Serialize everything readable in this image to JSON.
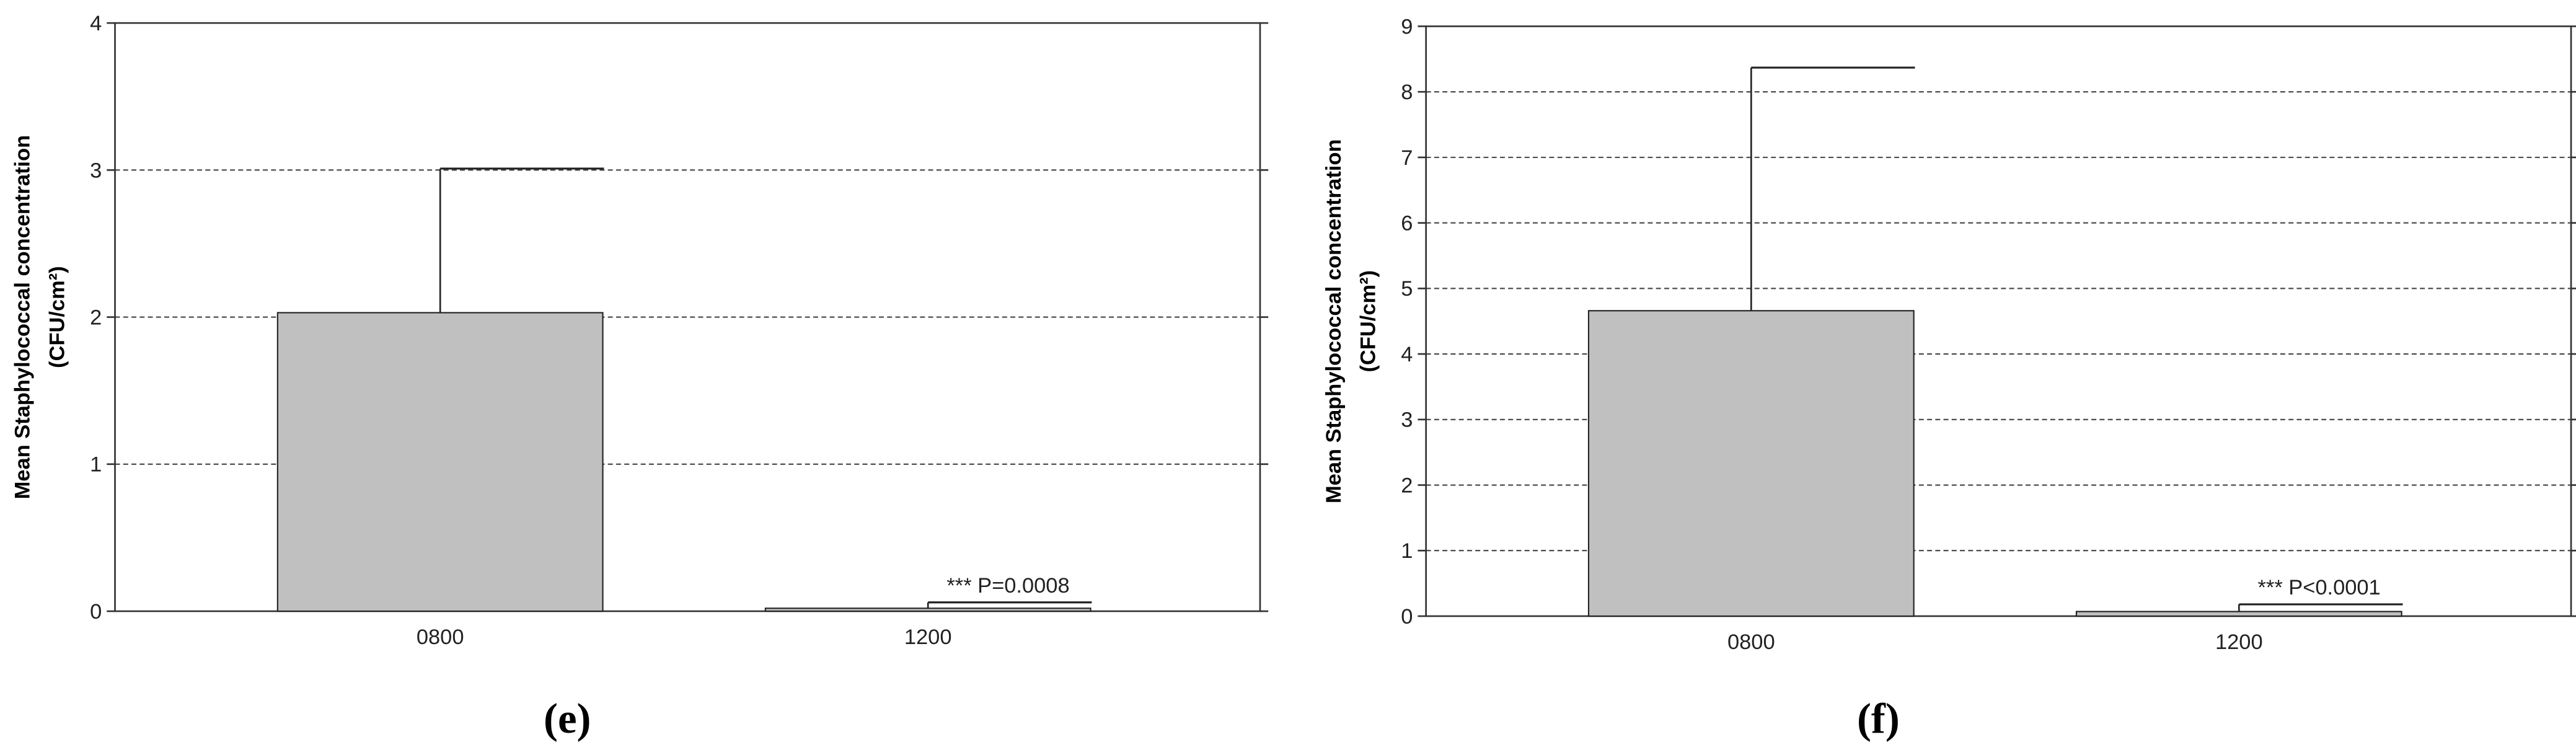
{
  "chart_data": [
    {
      "type": "bar",
      "panel_label": "(e)",
      "y_label": "Mean Staphylococcal concentration",
      "y_label_unit": "(CFU/cm²)",
      "categories": [
        "0800",
        "1200"
      ],
      "values": [
        2.03,
        0.02
      ],
      "errors": [
        0.98,
        0.04
      ],
      "color": "#c0c0c0",
      "annotation": "*** P=0.0008",
      "ylim": [
        0,
        4
      ],
      "yticks": [
        0,
        1,
        2,
        3,
        4
      ],
      "grid": true
    },
    {
      "type": "bar",
      "panel_label": "(f)",
      "y_label": "Mean Staphylococcal concentration",
      "y_label_unit": "(CFU/cm²)",
      "categories": [
        "0800",
        "1200"
      ],
      "values": [
        4.66,
        0.07
      ],
      "errors": [
        3.71,
        0.11
      ],
      "color": "#c0c0c0",
      "annotation": "*** P<0.0001",
      "ylim": [
        0,
        9
      ],
      "yticks": [
        0,
        1,
        2,
        3,
        4,
        5,
        6,
        7,
        8,
        9
      ],
      "grid": true
    }
  ]
}
